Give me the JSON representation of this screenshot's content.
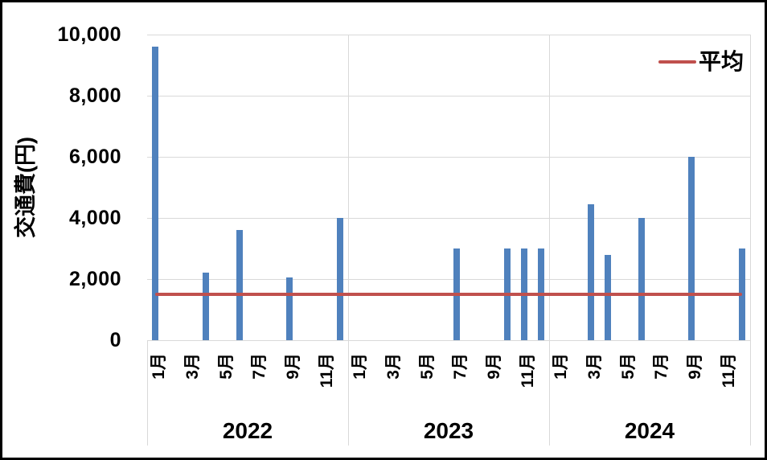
{
  "chart_data": {
    "type": "bar",
    "title": "",
    "ylabel": "交通費(円)",
    "ylim": [
      0,
      10000
    ],
    "ytick_interval": 2000,
    "ytick_labels": [
      "0",
      "2,000",
      "4,000",
      "6,000",
      "8,000",
      "10,000"
    ],
    "xtick_month_labels": [
      "1月",
      "3月",
      "5月",
      "7月",
      "9月",
      "11月"
    ],
    "xtick_label_months": [
      1,
      3,
      5,
      7,
      9,
      11
    ],
    "years": [
      "2022",
      "2023",
      "2024"
    ],
    "values_by_year": {
      "2022": [
        9600,
        0,
        0,
        2200,
        0,
        3600,
        0,
        0,
        2050,
        0,
        0,
        4000
      ],
      "2023": [
        0,
        0,
        0,
        0,
        0,
        0,
        3000,
        0,
        0,
        3000,
        3000,
        3000
      ],
      "2024": [
        0,
        0,
        4450,
        2800,
        0,
        4000,
        0,
        0,
        6000,
        0,
        0,
        3000
      ]
    },
    "bar_points": [
      {
        "year": "2022",
        "month": "1月",
        "value": 9600
      },
      {
        "year": "2022",
        "month": "4月",
        "value": 2200
      },
      {
        "year": "2022",
        "month": "6月",
        "value": 3600
      },
      {
        "year": "2022",
        "month": "9月",
        "value": 2050
      },
      {
        "year": "2022",
        "month": "12月",
        "value": 4000
      },
      {
        "year": "2023",
        "month": "7月",
        "value": 3000
      },
      {
        "year": "2023",
        "month": "10月",
        "value": 3000
      },
      {
        "year": "2023",
        "month": "11月",
        "value": 3000
      },
      {
        "year": "2023",
        "month": "12月",
        "value": 3000
      },
      {
        "year": "2024",
        "month": "3月",
        "value": 4450
      },
      {
        "year": "2024",
        "month": "4月",
        "value": 2800
      },
      {
        "year": "2024",
        "month": "6月",
        "value": 4000
      },
      {
        "year": "2024",
        "month": "9月",
        "value": 6000
      },
      {
        "year": "2024",
        "month": "12月",
        "value": 3000
      }
    ],
    "average_line": {
      "label": "平均",
      "value": 1491.7
    },
    "legend": {
      "position": "top-right",
      "entries": [
        {
          "label": "平均",
          "type": "line"
        }
      ]
    },
    "grid": true,
    "colors": {
      "bar": "#4F81BD",
      "average_line": "#C0504D",
      "gridline": "#D9D9D9",
      "text": "#000000",
      "background": "#FFFFFF"
    }
  }
}
